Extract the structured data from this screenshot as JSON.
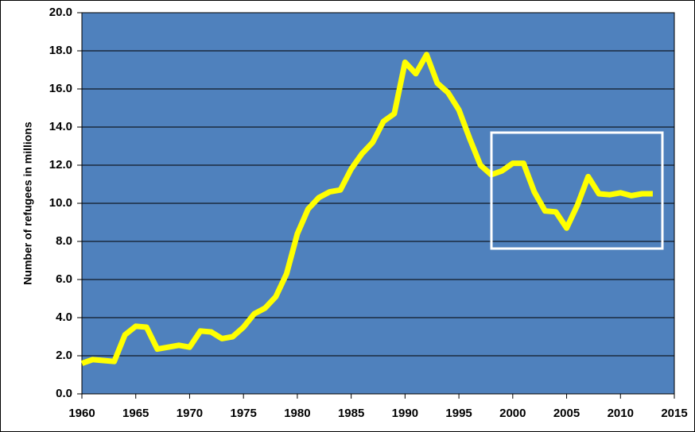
{
  "chart_data": {
    "type": "line",
    "y_label": "Number of refugees in millions",
    "x": [
      1960,
      1961,
      1962,
      1963,
      1964,
      1965,
      1966,
      1967,
      1968,
      1969,
      1970,
      1971,
      1972,
      1973,
      1974,
      1975,
      1976,
      1977,
      1978,
      1979,
      1980,
      1981,
      1982,
      1983,
      1984,
      1985,
      1986,
      1987,
      1988,
      1989,
      1990,
      1991,
      1992,
      1993,
      1994,
      1995,
      1996,
      1997,
      1998,
      1999,
      2000,
      2001,
      2002,
      2003,
      2004,
      2005,
      2006,
      2007,
      2008,
      2009,
      2010,
      2011,
      2012,
      2013
    ],
    "series": [
      {
        "color": "#ffff00",
        "values": [
          1.6,
          1.8,
          1.75,
          1.7,
          3.1,
          3.55,
          3.5,
          2.35,
          2.45,
          2.55,
          2.45,
          3.3,
          3.25,
          2.9,
          3.0,
          3.5,
          4.2,
          4.5,
          5.1,
          6.3,
          8.4,
          9.7,
          10.3,
          10.6,
          10.7,
          11.8,
          12.6,
          13.2,
          14.3,
          14.7,
          17.4,
          16.8,
          17.8,
          16.3,
          15.8,
          14.9,
          13.4,
          12.0,
          11.5,
          11.7,
          12.1,
          12.1,
          10.6,
          9.6,
          9.55,
          8.7,
          9.9,
          11.4,
          10.5,
          10.45,
          10.55,
          10.4,
          10.5,
          10.5
        ]
      }
    ],
    "xlim": [
      1960,
      2015
    ],
    "xticks": [
      1960,
      1965,
      1970,
      1975,
      1980,
      1985,
      1990,
      1995,
      2000,
      2005,
      2010,
      2015
    ],
    "ylim": [
      0,
      20
    ],
    "yticks": [
      {
        "value": 0,
        "label": "0.0"
      },
      {
        "value": 2,
        "label": "2.0"
      },
      {
        "value": 4,
        "label": "4.0"
      },
      {
        "value": 6,
        "label": "6.0"
      },
      {
        "value": 8,
        "label": "8.0"
      },
      {
        "value": 10,
        "label": "10.0"
      },
      {
        "value": 12,
        "label": "12.0"
      },
      {
        "value": 14,
        "label": "14.0"
      },
      {
        "value": 16,
        "label": "16.0"
      },
      {
        "value": 18,
        "label": "18.0"
      },
      {
        "value": 20,
        "label": "20.0"
      }
    ],
    "grid": true,
    "plot_color": "#4f81bd"
  }
}
